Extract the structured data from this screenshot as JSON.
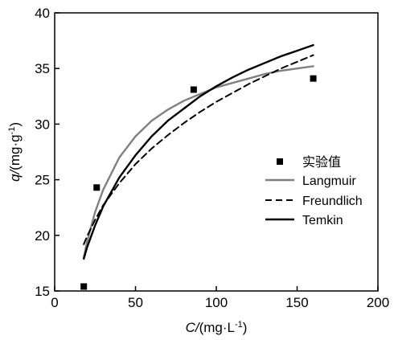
{
  "chart_data": {
    "type": "scatter",
    "x_unit_prefix": "C/",
    "x_unit": "(mg·L",
    "x_unit_exp": "-1",
    "x_unit_close": ")",
    "y_unit_prefix": "q/",
    "y_unit": "(mg·g",
    "y_unit_exp": "-1",
    "y_unit_close": ")",
    "xlim": [
      0,
      200
    ],
    "ylim": [
      15,
      40
    ],
    "x_ticks": [
      0,
      50,
      100,
      150,
      200
    ],
    "y_ticks": [
      15,
      20,
      25,
      30,
      35,
      40
    ],
    "grid": false,
    "legend_position": "right",
    "experimental": {
      "name": "实验值",
      "marker": "square",
      "color": "#000000",
      "points": [
        {
          "x": 18,
          "y": 15.4
        },
        {
          "x": 26,
          "y": 24.3
        },
        {
          "x": 86,
          "y": 33.1
        },
        {
          "x": 160,
          "y": 34.1
        }
      ]
    },
    "fits": [
      {
        "name": "Langmuir",
        "color": "#808080",
        "dash": "solid",
        "x": [
          18,
          20,
          25,
          30,
          40,
          50,
          60,
          70,
          80,
          90,
          100,
          110,
          120,
          130,
          140,
          150,
          160
        ],
        "y": [
          18.0,
          19.4,
          22.1,
          24.1,
          27.0,
          28.9,
          30.3,
          31.3,
          32.1,
          32.7,
          33.3,
          33.7,
          34.1,
          34.5,
          34.8,
          35.0,
          35.2
        ]
      },
      {
        "name": "Freundlich",
        "color": "#000000",
        "dash": "dashed",
        "x": [
          18,
          20,
          25,
          30,
          40,
          50,
          60,
          70,
          80,
          90,
          100,
          110,
          120,
          130,
          140,
          150,
          160
        ],
        "y": [
          19.2,
          19.9,
          21.4,
          22.7,
          24.7,
          26.4,
          27.8,
          29.0,
          30.1,
          31.1,
          32.0,
          32.8,
          33.6,
          34.3,
          35.0,
          35.6,
          36.2
        ]
      },
      {
        "name": "Temkin",
        "color": "#000000",
        "dash": "solid",
        "x": [
          18,
          20,
          25,
          30,
          40,
          50,
          60,
          70,
          80,
          90,
          100,
          110,
          120,
          130,
          140,
          150,
          160
        ],
        "y": [
          17.9,
          18.9,
          20.9,
          22.6,
          25.2,
          27.2,
          28.9,
          30.3,
          31.4,
          32.5,
          33.4,
          34.2,
          34.9,
          35.5,
          36.1,
          36.6,
          37.1
        ]
      }
    ]
  }
}
